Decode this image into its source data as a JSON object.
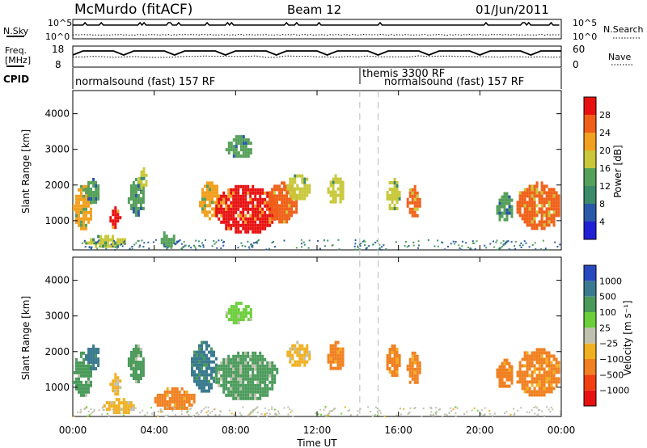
{
  "header": {
    "station": "McMurdo (fitACF)",
    "beam": "Beam 12",
    "date": "01/Jun/2011"
  },
  "top_panels": {
    "nsky_label": "N.Sky",
    "nsky_ticks": [
      "10^5",
      "10^0"
    ],
    "nsearch_label": "N.Search",
    "nsearch_ticks": [
      "10^5",
      "10^0"
    ],
    "freq_label_line1": "Freq.",
    "freq_label_line2": "[MHz]",
    "freq_ticks": [
      "18",
      "8"
    ],
    "nave_label": "Nave",
    "nave_ticks": [
      "60",
      "0"
    ],
    "cpid_label": "CPID",
    "cpid_segments": [
      {
        "label": "normalsound (fast) 157 RF",
        "start_hour": 0
      },
      {
        "label": "themis 3300 RF",
        "start_hour": 14.1
      },
      {
        "label": "normalsound (fast) 157 RF",
        "start_hour": 15.0
      }
    ]
  },
  "axes": {
    "ylabel": "Slant Range [km]",
    "xlabel": "Time UT",
    "x_ticks": [
      "00:00",
      "04:00",
      "08:00",
      "12:00",
      "16:00",
      "20:00",
      "00:00"
    ],
    "x_tick_hours": [
      0,
      4,
      8,
      12,
      16,
      20,
      24
    ],
    "y_ticks": [
      "1000",
      "2000",
      "3000",
      "4000"
    ],
    "y_tick_values": [
      1000,
      2000,
      3000,
      4000
    ],
    "y_range": [
      180,
      4650
    ],
    "x_range_hours": [
      0,
      24
    ]
  },
  "power_colorbar": {
    "label": "Power [dB]",
    "ticks": [
      "4",
      "8",
      "12",
      "16",
      "20",
      "24",
      "28"
    ],
    "colors": [
      "#1f1fd6",
      "#2a58a8",
      "#3b8a6a",
      "#55a05a",
      "#c8c83a",
      "#f2a020",
      "#f06018",
      "#e81010"
    ]
  },
  "velocity_colorbar": {
    "label": "Velocity [m s⁻¹]",
    "ticks": [
      "1000",
      "500",
      "100",
      "25",
      "−25",
      "−100",
      "−500",
      "−1000"
    ],
    "colors": [
      "#2848c0",
      "#3a7a8e",
      "#4a9a5a",
      "#6bcf3a",
      "#c0c0b0",
      "#f0b020",
      "#f08020",
      "#f04010",
      "#e81010"
    ]
  },
  "chart_data": [
    {
      "type": "heatmap",
      "title": "Power",
      "xlabel": "Time UT",
      "ylabel": "Slant Range [km]",
      "x_unit": "hours UT",
      "ylim": [
        180,
        4650
      ],
      "xlim": [
        0,
        24
      ],
      "colorbar_label": "Power [dB]",
      "regions": [
        {
          "x0": 0.0,
          "x1": 0.9,
          "y0": 800,
          "y1": 2000,
          "value": 22
        },
        {
          "x0": 0.6,
          "x1": 1.3,
          "y0": 1500,
          "y1": 2200,
          "value": 14
        },
        {
          "x0": 1.8,
          "x1": 2.3,
          "y0": 800,
          "y1": 1400,
          "value": 28
        },
        {
          "x0": 2.7,
          "x1": 3.5,
          "y0": 1200,
          "y1": 2200,
          "value": 14
        },
        {
          "x0": 3.2,
          "x1": 3.6,
          "y0": 1900,
          "y1": 2500,
          "value": 16
        },
        {
          "x0": 6.2,
          "x1": 7.2,
          "y0": 1100,
          "y1": 2100,
          "value": 20
        },
        {
          "x0": 7.0,
          "x1": 10.0,
          "y0": 700,
          "y1": 2000,
          "value": 28
        },
        {
          "x0": 9.5,
          "x1": 11.0,
          "y0": 1000,
          "y1": 2100,
          "value": 24
        },
        {
          "x0": 7.5,
          "x1": 8.8,
          "y0": 2800,
          "y1": 3400,
          "value": 12
        },
        {
          "x0": 10.5,
          "x1": 11.6,
          "y0": 1600,
          "y1": 2300,
          "value": 16
        },
        {
          "x0": 12.5,
          "x1": 13.3,
          "y0": 1500,
          "y1": 2300,
          "value": 16
        },
        {
          "x0": 15.4,
          "x1": 16.0,
          "y0": 1300,
          "y1": 2200,
          "value": 16
        },
        {
          "x0": 16.4,
          "x1": 17.0,
          "y0": 1100,
          "y1": 2000,
          "value": 24
        },
        {
          "x0": 20.8,
          "x1": 21.6,
          "y0": 1000,
          "y1": 1800,
          "value": 12
        },
        {
          "x0": 21.8,
          "x1": 23.9,
          "y0": 800,
          "y1": 2100,
          "value": 26
        },
        {
          "x0": 0.6,
          "x1": 2.6,
          "y0": 300,
          "y1": 600,
          "value": 16
        },
        {
          "x0": 4.2,
          "x1": 5.0,
          "y0": 300,
          "y1": 700,
          "value": 12
        }
      ]
    },
    {
      "type": "heatmap",
      "title": "Velocity",
      "xlabel": "Time UT",
      "ylabel": "Slant Range [km]",
      "x_unit": "hours UT",
      "ylim": [
        180,
        4650
      ],
      "xlim": [
        0,
        24
      ],
      "colorbar_label": "Velocity [m s⁻¹]",
      "regions": [
        {
          "x0": 0.0,
          "x1": 0.9,
          "y0": 800,
          "y1": 2000,
          "value": 100
        },
        {
          "x0": 0.6,
          "x1": 1.3,
          "y0": 1500,
          "y1": 2200,
          "value": 500
        },
        {
          "x0": 1.8,
          "x1": 2.3,
          "y0": 800,
          "y1": 1400,
          "value": -100
        },
        {
          "x0": 2.7,
          "x1": 3.5,
          "y0": 1200,
          "y1": 2200,
          "value": 100
        },
        {
          "x0": 5.8,
          "x1": 7.0,
          "y0": 900,
          "y1": 2300,
          "value": 500
        },
        {
          "x0": 7.0,
          "x1": 10.0,
          "y0": 700,
          "y1": 2000,
          "value": 100
        },
        {
          "x0": 7.5,
          "x1": 8.8,
          "y0": 2800,
          "y1": 3400,
          "value": 25
        },
        {
          "x0": 10.5,
          "x1": 11.6,
          "y0": 1600,
          "y1": 2300,
          "value": -100
        },
        {
          "x0": 12.5,
          "x1": 13.3,
          "y0": 1500,
          "y1": 2300,
          "value": -500
        },
        {
          "x0": 15.4,
          "x1": 16.0,
          "y0": 1300,
          "y1": 2200,
          "value": -500
        },
        {
          "x0": 16.4,
          "x1": 17.0,
          "y0": 1100,
          "y1": 2000,
          "value": -500
        },
        {
          "x0": 20.8,
          "x1": 21.6,
          "y0": 1000,
          "y1": 1800,
          "value": -500
        },
        {
          "x0": 21.8,
          "x1": 23.9,
          "y0": 800,
          "y1": 2100,
          "value": -500
        },
        {
          "x0": 1.5,
          "x1": 3.0,
          "y0": 300,
          "y1": 700,
          "value": -100
        },
        {
          "x0": 4.0,
          "x1": 6.0,
          "y0": 400,
          "y1": 1000,
          "value": -500
        }
      ]
    }
  ]
}
